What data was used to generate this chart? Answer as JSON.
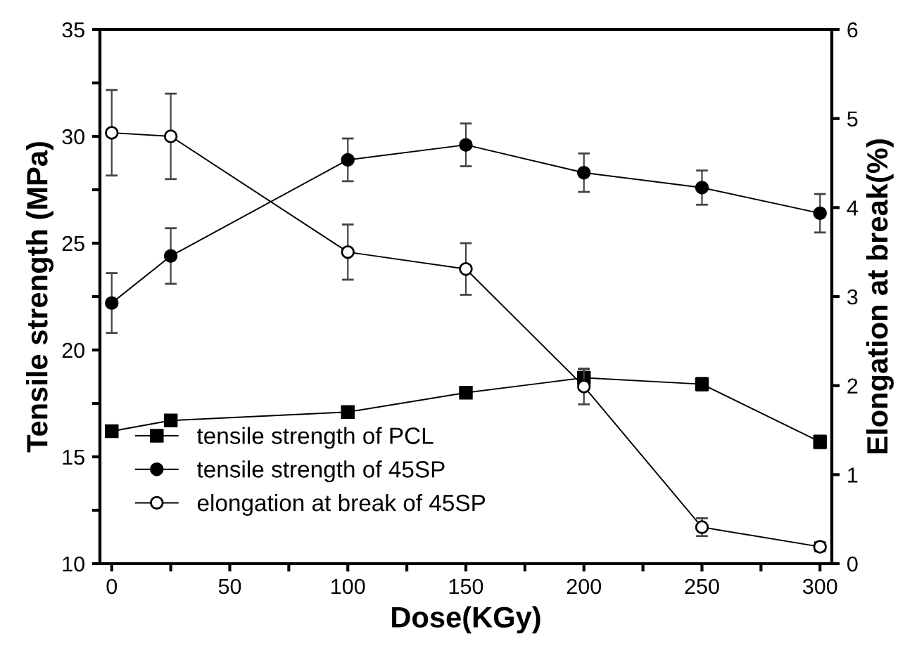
{
  "chart_data": {
    "type": "line",
    "xlabel": "Dose(KGy)",
    "ylabel": "Tensile strength (MPa)",
    "y2label": "Elongation at break(%)",
    "x": [
      0,
      25,
      100,
      150,
      200,
      250,
      300
    ],
    "series": [
      {
        "name": "tensile strength of PCL",
        "color": "#000000",
        "marker": "square",
        "values": [
          16.2,
          16.7,
          17.1,
          18.0,
          18.7,
          18.4,
          15.7
        ],
        "errors": [
          0.2,
          0.2,
          0.2,
          0.2,
          0.4,
          0.3,
          0.3
        ]
      },
      {
        "name": "tensile strength of 45SP",
        "color": "#000000",
        "marker": "circle",
        "values": [
          22.2,
          24.4,
          28.9,
          29.6,
          28.3,
          27.6,
          26.4
        ],
        "errors": [
          1.4,
          1.3,
          1.0,
          1.0,
          0.9,
          0.8,
          0.9
        ]
      },
      {
        "name": "elongation at break of 45SP",
        "color": "#000000",
        "marker": "circle",
        "axis": "y2",
        "values": [
          4.84,
          4.8,
          3.5,
          3.31,
          1.99,
          0.41,
          0.19
        ],
        "errors": [
          0.48,
          0.48,
          0.31,
          0.29,
          0.2,
          0.1,
          0.05
        ]
      }
    ],
    "xlim": [
      -5,
      305
    ],
    "xticks": [
      0,
      {
        "value": 25,
        "label": null
      },
      50,
      {
        "value": 75,
        "label": null
      },
      100,
      {
        "value": 125,
        "label": null
      },
      150,
      {
        "value": 175,
        "label": null
      },
      200,
      {
        "value": 225,
        "label": null
      },
      250,
      {
        "value": 275,
        "label": null
      },
      300
    ],
    "ylim": [
      10,
      35
    ],
    "yticks": [
      10,
      {
        "value": 12.5,
        "label": null
      },
      15,
      {
        "value": 17.5,
        "label": null
      },
      20,
      {
        "value": 22.5,
        "label": null
      },
      25,
      {
        "value": 27.5,
        "label": null
      },
      30,
      {
        "value": 32.5,
        "label": null
      },
      35
    ],
    "y2lim": [
      0,
      6
    ],
    "y2ticks": [
      0,
      1,
      2,
      3,
      4,
      5,
      6
    ],
    "legend": "bottom left",
    "grid": false,
    "line_style": "solid"
  }
}
